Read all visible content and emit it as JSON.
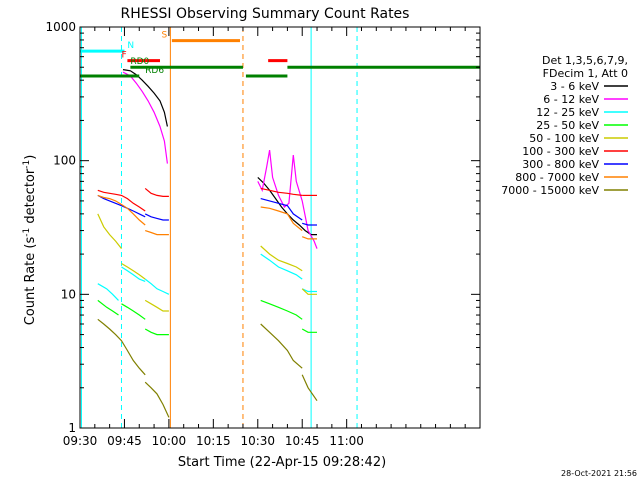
{
  "chart_data": {
    "type": "line",
    "title": "RHESSI Observing Summary Count Rates",
    "xlabel": "Start Time (22-Apr-15 09:28:42)",
    "ylabel_main": "Count Rate (s",
    "ylabel_sup1": "-1",
    "ylabel_mid": " detector",
    "ylabel_sup2": "-1",
    "ylabel_end": ")",
    "yscale": "log",
    "xlim_minutes": [
      -30,
      105
    ],
    "ylim": [
      1,
      1000
    ],
    "x_ticks": [
      {
        "label": "09:30",
        "t": -30
      },
      {
        "label": "09:45",
        "t": -15
      },
      {
        "label": "10:00",
        "t": 0
      },
      {
        "label": "10:15",
        "t": 15
      },
      {
        "label": "10:30",
        "t": 30
      },
      {
        "label": "10:45",
        "t": 45
      },
      {
        "label": "11:00",
        "t": 60
      }
    ],
    "y_ticks": [
      {
        "label": "1",
        "v": 1
      },
      {
        "label": "10",
        "v": 10
      },
      {
        "label": "100",
        "v": 100
      },
      {
        "label": "1000",
        "v": 1000
      }
    ],
    "legend_header": [
      "Det 1,3,5,6,7,9,",
      "FDecim 1, Att 0"
    ],
    "series": [
      {
        "name": "3 - 6 keV",
        "color": "#000000",
        "segments": [
          [
            [
              -15.5,
              480
            ],
            [
              -13,
              470
            ],
            [
              -11,
              440
            ],
            [
              -9,
              400
            ],
            [
              -7,
              360
            ],
            [
              -5,
              320
            ],
            [
              -3,
              280
            ],
            [
              -1.5,
              230
            ],
            [
              -0.5,
              180
            ]
          ],
          [
            [
              30,
              75
            ],
            [
              32,
              68
            ],
            [
              34,
              60
            ],
            [
              36,
              52
            ],
            [
              38,
              45
            ],
            [
              40,
              40
            ],
            [
              42,
              36
            ],
            [
              44,
              33
            ],
            [
              46,
              30
            ],
            [
              48,
              28
            ],
            [
              50,
              28
            ]
          ]
        ]
      },
      {
        "name": "6 - 12 keV",
        "color": "#ff00ff",
        "segments": [
          [
            [
              -15.5,
              460
            ],
            [
              -13,
              430
            ],
            [
              -11,
              380
            ],
            [
              -9,
              330
            ],
            [
              -7,
              280
            ],
            [
              -5,
              230
            ],
            [
              -3,
              180
            ],
            [
              -1.5,
              140
            ],
            [
              -0.5,
              95
            ]
          ],
          [
            [
              30,
              70
            ],
            [
              31.5,
              60
            ],
            [
              33,
              90
            ],
            [
              34,
              120
            ],
            [
              35,
              75
            ],
            [
              37,
              55
            ],
            [
              39,
              45
            ],
            [
              40.5,
              48
            ],
            [
              42,
              110
            ],
            [
              43,
              70
            ],
            [
              45,
              50
            ],
            [
              47,
              30
            ],
            [
              49,
              25
            ],
            [
              50,
              22
            ]
          ]
        ]
      },
      {
        "name": "12 - 25 keV",
        "color": "#00ffff",
        "segments": [
          [
            [
              -24,
              12
            ],
            [
              -21,
              11
            ],
            [
              -19,
              10
            ],
            [
              -17,
              9
            ]
          ],
          [
            [
              -16,
              16
            ],
            [
              -14,
              15
            ],
            [
              -12,
              14
            ],
            [
              -10,
              13
            ],
            [
              -8,
              12.5
            ]
          ],
          [
            [
              -8,
              13
            ],
            [
              -6,
              12
            ],
            [
              -4,
              11
            ],
            [
              -2,
              10.5
            ],
            [
              0,
              10
            ]
          ],
          [
            [
              31,
              20
            ],
            [
              34,
              18
            ],
            [
              37,
              16
            ],
            [
              40,
              15
            ],
            [
              43,
              14
            ],
            [
              45,
              13
            ]
          ],
          [
            [
              45,
              11
            ],
            [
              47,
              10.5
            ],
            [
              50,
              10.5
            ]
          ]
        ]
      },
      {
        "name": "25 - 50 keV",
        "color": "#00ff00",
        "segments": [
          [
            [
              -24,
              9
            ],
            [
              -21,
              8
            ],
            [
              -19,
              7.5
            ],
            [
              -17,
              7
            ]
          ],
          [
            [
              -16,
              8.5
            ],
            [
              -14,
              8
            ],
            [
              -12,
              7.5
            ],
            [
              -10,
              7
            ],
            [
              -8,
              6.5
            ]
          ],
          [
            [
              -8,
              5.5
            ],
            [
              -6,
              5.2
            ],
            [
              -4,
              5
            ],
            [
              -2,
              5
            ],
            [
              0,
              5
            ]
          ],
          [
            [
              31,
              9
            ],
            [
              34,
              8.5
            ],
            [
              37,
              8
            ],
            [
              40,
              7.5
            ],
            [
              43,
              7
            ],
            [
              45,
              6.5
            ]
          ],
          [
            [
              45,
              5.5
            ],
            [
              47,
              5.2
            ],
            [
              50,
              5.2
            ]
          ]
        ]
      },
      {
        "name": "50 - 100 keV",
        "color": "#cccc00",
        "segments": [
          [
            [
              -24,
              40
            ],
            [
              -22,
              32
            ],
            [
              -20,
              28
            ],
            [
              -18,
              25
            ],
            [
              -16,
              22
            ]
          ],
          [
            [
              -16,
              17
            ],
            [
              -14,
              16
            ],
            [
              -12,
              15
            ],
            [
              -10,
              14
            ],
            [
              -8,
              13
            ]
          ],
          [
            [
              -8,
              9
            ],
            [
              -6,
              8.5
            ],
            [
              -4,
              8
            ],
            [
              -2,
              7.5
            ],
            [
              0,
              7.5
            ]
          ],
          [
            [
              31,
              23
            ],
            [
              34,
              20
            ],
            [
              37,
              18
            ],
            [
              40,
              17
            ],
            [
              43,
              16
            ],
            [
              45,
              15
            ]
          ],
          [
            [
              45,
              11
            ],
            [
              47,
              10
            ],
            [
              50,
              10
            ]
          ]
        ]
      },
      {
        "name": "100 - 300 keV",
        "color": "#ff0000",
        "segments": [
          [
            [
              -24,
              60
            ],
            [
              -22,
              58
            ],
            [
              -20,
              57
            ],
            [
              -18,
              56
            ],
            [
              -16,
              55
            ],
            [
              -14,
              52
            ],
            [
              -12,
              48
            ],
            [
              -10,
              45
            ],
            [
              -8,
              42
            ]
          ],
          [
            [
              -8,
              62
            ],
            [
              -6,
              57
            ],
            [
              -4,
              55
            ],
            [
              -2,
              54
            ],
            [
              0,
              54
            ]
          ],
          [
            [
              31,
              62
            ],
            [
              34,
              60
            ],
            [
              37,
              58
            ],
            [
              40,
              57
            ],
            [
              42,
              56
            ],
            [
              45,
              55
            ]
          ],
          [
            [
              45,
              55
            ],
            [
              47,
              55
            ],
            [
              50,
              55
            ]
          ]
        ]
      },
      {
        "name": "300 - 800 keV",
        "color": "#0000ff",
        "segments": [
          [
            [
              -24,
              55
            ],
            [
              -22,
              52
            ],
            [
              -20,
              50
            ],
            [
              -18,
              48
            ],
            [
              -16,
              46
            ],
            [
              -14,
              44
            ],
            [
              -12,
              42
            ],
            [
              -10,
              40
            ],
            [
              -8,
              38
            ]
          ],
          [
            [
              -8,
              40
            ],
            [
              -6,
              38
            ],
            [
              -4,
              37
            ],
            [
              -2,
              36
            ],
            [
              0,
              36
            ]
          ],
          [
            [
              31,
              52
            ],
            [
              34,
              50
            ],
            [
              37,
              48
            ],
            [
              40,
              46
            ],
            [
              42,
              40
            ],
            [
              45,
              36
            ]
          ],
          [
            [
              45,
              34
            ],
            [
              47,
              33
            ],
            [
              50,
              33
            ]
          ]
        ]
      },
      {
        "name": "800 - 7000 keV",
        "color": "#ff8000",
        "segments": [
          [
            [
              -24,
              55
            ],
            [
              -22,
              53
            ],
            [
              -20,
              52
            ],
            [
              -18,
              50
            ],
            [
              -16,
              47
            ],
            [
              -14,
              44
            ],
            [
              -12,
              40
            ],
            [
              -10,
              36
            ],
            [
              -8,
              33
            ]
          ],
          [
            [
              -8,
              30
            ],
            [
              -6,
              29
            ],
            [
              -4,
              28
            ],
            [
              -2,
              28
            ],
            [
              0,
              28
            ]
          ],
          [
            [
              31,
              45
            ],
            [
              34,
              44
            ],
            [
              37,
              42
            ],
            [
              40,
              40
            ],
            [
              42,
              34
            ],
            [
              45,
              30
            ]
          ],
          [
            [
              45,
              27
            ],
            [
              47,
              26
            ],
            [
              50,
              26
            ]
          ]
        ]
      },
      {
        "name": "7000 - 15000 keV",
        "color": "#808000",
        "segments": [
          [
            [
              -24,
              6.5
            ],
            [
              -22,
              6
            ],
            [
              -20,
              5.5
            ],
            [
              -18,
              5
            ],
            [
              -16,
              4.5
            ],
            [
              -14,
              3.8
            ],
            [
              -12,
              3.2
            ],
            [
              -10,
              2.8
            ],
            [
              -8,
              2.5
            ]
          ],
          [
            [
              -8,
              2.2
            ],
            [
              -6,
              2
            ],
            [
              -4,
              1.8
            ],
            [
              -2,
              1.5
            ],
            [
              0,
              1.2
            ]
          ],
          [
            [
              31,
              6
            ],
            [
              34,
              5.2
            ],
            [
              37,
              4.5
            ],
            [
              40,
              3.8
            ],
            [
              42,
              3.2
            ],
            [
              45,
              2.8
            ]
          ],
          [
            [
              45,
              2.5
            ],
            [
              47,
              2
            ],
            [
              50,
              1.6
            ]
          ]
        ]
      }
    ],
    "vertical_lines": [
      {
        "t": -29.5,
        "color": "#00ffff",
        "style": "solid"
      },
      {
        "t": -16,
        "color": "#00ffff",
        "style": "dashed"
      },
      {
        "t": 0.5,
        "color": "#ff8000",
        "style": "solid"
      },
      {
        "t": 25,
        "color": "#ff8000",
        "style": "dashed"
      },
      {
        "t": 48,
        "color": "#00ffff",
        "style": "solid"
      },
      {
        "t": 63.5,
        "color": "#00ffff",
        "style": "dashed"
      }
    ],
    "flag_bars": [
      {
        "label": "N",
        "color": "#00ffff",
        "y": 660,
        "width": 3,
        "segments": [
          [
            -30,
            -15
          ]
        ],
        "label_t": -14
      },
      {
        "label": "S",
        "color": "#ff8000",
        "y": 790,
        "width": 3,
        "segments": [
          [
            1,
            24
          ]
        ],
        "label_t": -2.5
      },
      {
        "label": "F",
        "color": "#ff0000",
        "y": 560,
        "width": 3,
        "segments": [
          [
            -14,
            -3
          ],
          [
            33.5,
            40
          ]
        ],
        "label_t": -16
      },
      {
        "label": "RD0",
        "color": "#008000",
        "y": 500,
        "width": 3,
        "segments": [
          [
            -13,
            25
          ],
          [
            40,
            105
          ]
        ],
        "label_t": -13
      },
      {
        "label": "RD6",
        "color": "#008000",
        "y": 430,
        "width": 3,
        "segments": [
          [
            -30,
            -10
          ],
          [
            26,
            40
          ]
        ],
        "label_t": -8
      }
    ],
    "timestamp": "28-Oct-2021 21:56"
  }
}
